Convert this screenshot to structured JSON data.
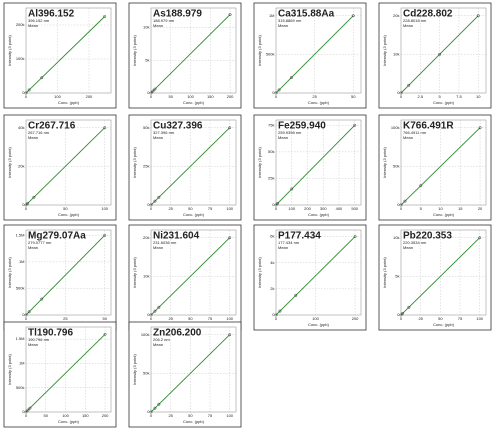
{
  "chart_data": [
    {
      "type": "line",
      "title": "Al396.152",
      "subtitle": "396.152 nm",
      "note": "Mean",
      "x_label": "Conc. (ppb)",
      "y_label": "Intensity (3 point)",
      "color": "#2e8b2e",
      "grid": true,
      "x": [
        0,
        10,
        50,
        250
      ],
      "values": [
        0,
        9000,
        45000,
        225000
      ],
      "xlim": [
        0,
        270
      ],
      "xticks": [
        0,
        100,
        200
      ],
      "ylim": [
        0,
        250000
      ],
      "yticks": [
        0,
        {
          "value": 100000,
          "label": "100k"
        },
        {
          "value": 200000,
          "label": "200k"
        }
      ]
    },
    {
      "type": "line",
      "title": "As188.979",
      "subtitle": "188.979 nm",
      "note": "Mean",
      "x_label": "Conc. (ppb)",
      "y_label": "Intensity (3 point)",
      "color": "#2e8b2e",
      "grid": true,
      "x": [
        0,
        5,
        10,
        200
      ],
      "values": [
        0,
        300,
        600,
        12000
      ],
      "xlim": [
        0,
        215
      ],
      "xticks": [
        0,
        50,
        100,
        150,
        200
      ],
      "ylim": [
        0,
        13000
      ],
      "yticks": [
        0,
        {
          "value": 5000,
          "label": "5k"
        },
        {
          "value": 10000,
          "label": "10k"
        }
      ]
    },
    {
      "type": "line",
      "title": "Ca315.88Aa",
      "subtitle": "315.8869 nm",
      "note": "Mean",
      "x_label": "Conc. (ppb)",
      "y_label": "Intensity (3 point)",
      "color": "#2e8b2e",
      "grid": true,
      "x": [
        0,
        2,
        10,
        50
      ],
      "values": [
        0,
        40000,
        200000,
        1000000
      ],
      "xlim": [
        0,
        55
      ],
      "xticks": [
        0,
        25,
        50
      ],
      "ylim": [
        0,
        1100000
      ],
      "yticks": [
        0,
        {
          "value": 500000,
          "label": "500k"
        },
        {
          "value": 1000000,
          "label": "1M"
        }
      ]
    },
    {
      "type": "line",
      "title": "Cd228.802",
      "subtitle": "228.8018 nm",
      "note": "Mean",
      "x_label": "Conc. (ppb)",
      "y_label": "Intensity (3 point)",
      "color": "#2e8b2e",
      "grid": true,
      "x": [
        0,
        1,
        5,
        10
      ],
      "values": [
        0,
        2000,
        10000,
        20000
      ],
      "xlim": [
        0,
        11
      ],
      "xticks": [
        0,
        2.5,
        5,
        7.5,
        10
      ],
      "ylim": [
        0,
        22000
      ],
      "yticks": [
        0,
        {
          "value": 10000,
          "label": "10k"
        },
        {
          "value": 20000,
          "label": "20k"
        }
      ]
    },
    {
      "type": "line",
      "title": "Cr267.716",
      "subtitle": "267.716 nm",
      "note": "Mean",
      "x_label": "Conc. (ppb)",
      "y_label": "Intensity (3 point)",
      "color": "#2e8b2e",
      "grid": true,
      "x": [
        0,
        2,
        10,
        100
      ],
      "values": [
        0,
        800,
        4000,
        40000
      ],
      "xlim": [
        0,
        108
      ],
      "xticks": [
        0,
        50,
        100
      ],
      "ylim": [
        0,
        44000
      ],
      "yticks": [
        0,
        {
          "value": 20000,
          "label": "20k"
        },
        {
          "value": 40000,
          "label": "40k"
        }
      ]
    },
    {
      "type": "line",
      "title": "Cu327.396",
      "subtitle": "327.396 nm",
      "note": "Mean",
      "x_label": "Conc. (ppb)",
      "y_label": "Intensity (3 point)",
      "color": "#2e8b2e",
      "grid": true,
      "x": [
        0,
        5,
        10,
        100
      ],
      "values": [
        0,
        2500,
        5000,
        50000
      ],
      "xlim": [
        0,
        108
      ],
      "xticks": [
        0,
        25,
        50,
        75,
        100
      ],
      "ylim": [
        0,
        55000
      ],
      "yticks": [
        0,
        {
          "value": 25000,
          "label": "25k"
        },
        {
          "value": 50000,
          "label": "50k"
        }
      ]
    },
    {
      "type": "line",
      "title": "Fe259.940",
      "subtitle": "259.9398 nm",
      "note": "Mean",
      "x_label": "Conc. (ppb)",
      "y_label": "Intensity (3 point)",
      "color": "#2e8b2e",
      "grid": true,
      "x": [
        0,
        10,
        100,
        500
      ],
      "values": [
        0,
        1500,
        15000,
        75000
      ],
      "xlim": [
        0,
        540
      ],
      "xticks": [
        0,
        100,
        200,
        300,
        400,
        500
      ],
      "ylim": [
        0,
        80000
      ],
      "yticks": [
        0,
        {
          "value": 25000,
          "label": "25k"
        },
        {
          "value": 50000,
          "label": "50k"
        },
        {
          "value": 75000,
          "label": "75k"
        }
      ]
    },
    {
      "type": "line",
      "title": "K766.491R",
      "subtitle": "766.4911 nm",
      "note": "Mean",
      "x_label": "Conc. (ppb)",
      "y_label": "Intensity (3 point)",
      "color": "#2e8b2e",
      "grid": true,
      "x": [
        0,
        1,
        5,
        20
      ],
      "values": [
        0,
        5000,
        25000,
        100000
      ],
      "xlim": [
        0,
        21.5
      ],
      "xticks": [
        0,
        5,
        10,
        15,
        20
      ],
      "ylim": [
        0,
        110000
      ],
      "yticks": [
        0,
        {
          "value": 50000,
          "label": "50k"
        },
        {
          "value": 100000,
          "label": "100k"
        }
      ]
    },
    {
      "type": "line",
      "title": "Mg279.07Aa",
      "subtitle": "279.0777 nm",
      "note": "Mean",
      "x_label": "Conc. (ppb)",
      "y_label": "Intensity (3 point)",
      "color": "#2e8b2e",
      "grid": true,
      "x": [
        0,
        2,
        10,
        50
      ],
      "values": [
        0,
        60000,
        300000,
        1500000
      ],
      "xlim": [
        0,
        54
      ],
      "xticks": [
        0,
        25,
        50
      ],
      "ylim": [
        0,
        1600000
      ],
      "yticks": [
        0,
        {
          "value": 500000,
          "label": "500k"
        },
        {
          "value": 1000000,
          "label": "1M"
        },
        {
          "value": 1500000,
          "label": "1.5M"
        }
      ]
    },
    {
      "type": "line",
      "title": "Ni231.604",
      "subtitle": "231.6036 nm",
      "note": "Mean",
      "x_label": "Conc. (ppb)",
      "y_label": "Intensity (3 point)",
      "color": "#2e8b2e",
      "grid": true,
      "x": [
        0,
        5,
        10,
        100
      ],
      "values": [
        0,
        1000,
        2000,
        20000
      ],
      "xlim": [
        0,
        108
      ],
      "xticks": [
        0,
        25,
        50,
        75,
        100
      ],
      "ylim": [
        0,
        22000
      ],
      "yticks": [
        0,
        {
          "value": 10000,
          "label": "10k"
        },
        {
          "value": 20000,
          "label": "20k"
        }
      ]
    },
    {
      "type": "line",
      "title": "P177.434",
      "subtitle": "177.434 nm",
      "note": "Mean",
      "x_label": "Conc. (ppb)",
      "y_label": "Intensity (3 point)",
      "color": "#2e8b2e",
      "grid": true,
      "x": [
        0,
        10,
        50,
        200
      ],
      "values": [
        0,
        300,
        1500,
        6000
      ],
      "xlim": [
        0,
        215
      ],
      "xticks": [
        0,
        100,
        200
      ],
      "ylim": [
        0,
        6500
      ],
      "yticks": [
        0,
        {
          "value": 2000,
          "label": "2k"
        },
        {
          "value": 4000,
          "label": "4k"
        },
        {
          "value": 6000,
          "label": "6k"
        }
      ]
    },
    {
      "type": "line",
      "title": "Pb220.353",
      "subtitle": "220.3534 nm",
      "note": "Mean",
      "x_label": "Conc. (ppb)",
      "y_label": "Intensity (3 point)",
      "color": "#2e8b2e",
      "grid": true,
      "x": [
        0,
        2,
        10,
        100
      ],
      "values": [
        0,
        200,
        1000,
        10000
      ],
      "xlim": [
        0,
        108
      ],
      "xticks": [
        0,
        25,
        50,
        75,
        100
      ],
      "ylim": [
        0,
        11000
      ],
      "yticks": [
        0,
        {
          "value": 5000,
          "label": "5k"
        },
        {
          "value": 10000,
          "label": "10k"
        }
      ]
    },
    {
      "type": "line",
      "title": "Tl190.796",
      "subtitle": "190.796 nm",
      "note": "Mean",
      "x_label": "Conc. (ppb)",
      "y_label": "Intensity (3 point)",
      "color": "#2e8b2e",
      "grid": true,
      "x": [
        0,
        5,
        10,
        200
      ],
      "values": [
        0,
        40000,
        80000,
        1600000
      ],
      "xlim": [
        0,
        215
      ],
      "xticks": [
        0,
        50,
        100,
        150,
        200
      ],
      "ylim": [
        0,
        1750000
      ],
      "yticks": [
        0,
        {
          "value": 500000,
          "label": "500k"
        },
        {
          "value": 1000000,
          "label": "1M"
        },
        {
          "value": 1500000,
          "label": "1.5M"
        }
      ]
    },
    {
      "type": "line",
      "title": "Zn206.200",
      "subtitle": "206.2 nm",
      "note": "Mean",
      "x_label": "Conc. (ppb)",
      "y_label": "Intensity (3 point)",
      "color": "#2e8b2e",
      "grid": true,
      "x": [
        0,
        5,
        10,
        100
      ],
      "values": [
        0,
        5000,
        10000,
        100000
      ],
      "xlim": [
        0,
        108
      ],
      "xticks": [
        0,
        25,
        50,
        75,
        100
      ],
      "ylim": [
        0,
        110000
      ],
      "yticks": [
        0,
        {
          "value": 50000,
          "label": "50k"
        },
        {
          "value": 100000,
          "label": "100k"
        }
      ]
    }
  ]
}
